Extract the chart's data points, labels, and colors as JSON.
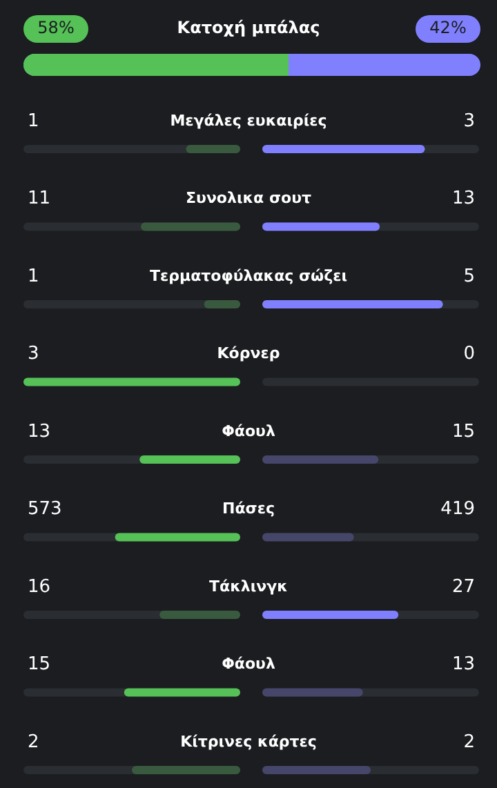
{
  "chart_data": {
    "type": "other",
    "categories": [
      "Κατοχή μπάλας",
      "Μεγάλες ευκαιρίες",
      "Συνολικα σουτ",
      "Τερματοφύλακας σώζει",
      "Κόρνερ",
      "Φάουλ",
      "Πάσες",
      "Τάκλινγκ",
      "Φάουλ",
      "Κίτρινες κάρτες"
    ],
    "series": [
      {
        "values": [
          58,
          1,
          11,
          1,
          3,
          13,
          573,
          16,
          15,
          2
        ],
        "value_labels": [
          "58%",
          "1",
          "11",
          "1",
          "3",
          "13",
          "573",
          "16",
          "15",
          "2"
        ],
        "colors": [
          "#55c157",
          "#3a5a40",
          "#3a5a40",
          "#3a5a40",
          "#55c157",
          "#55c157",
          "#55c157",
          "#3a5a40",
          "#55c157",
          "#3a5a40"
        ]
      },
      {
        "values": [
          42,
          3,
          13,
          5,
          0,
          15,
          419,
          27,
          13,
          2
        ],
        "value_labels": [
          "42%",
          "3",
          "13",
          "5",
          "0",
          "15",
          "419",
          "27",
          "13",
          "2"
        ],
        "colors": [
          "#8080ff",
          "#8080ff",
          "#8080ff",
          "#8080ff",
          "#45466a",
          "#45466a",
          "#45466a",
          "#8080ff",
          "#45466a",
          "#45466a"
        ]
      }
    ]
  }
}
